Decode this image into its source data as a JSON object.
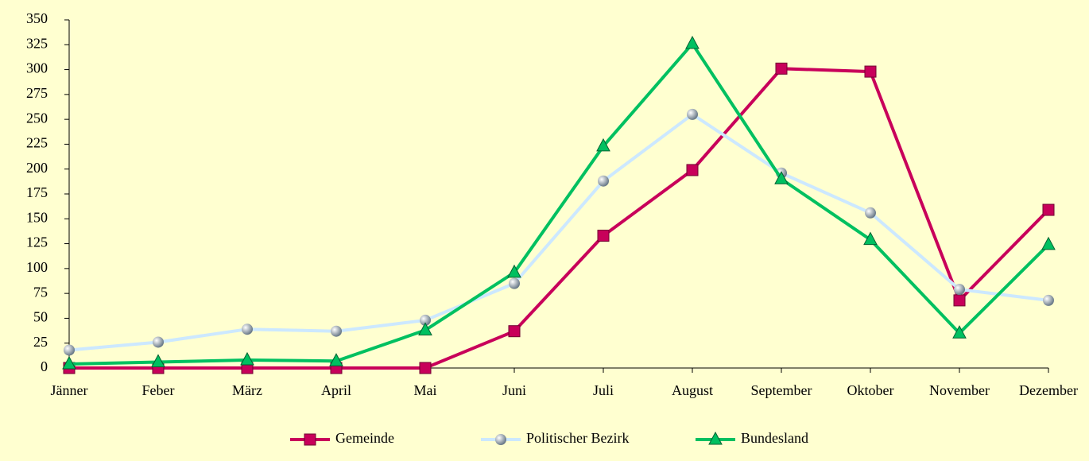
{
  "chart_data": {
    "type": "line",
    "categories": [
      "Jänner",
      "Feber",
      "März",
      "April",
      "Mai",
      "Juni",
      "Juli",
      "August",
      "September",
      "Oktober",
      "November",
      "Dezember"
    ],
    "series": [
      {
        "name": "Gemeinde",
        "color": "#c8005a",
        "marker": "square",
        "values": [
          0,
          0,
          0,
          0,
          0,
          37,
          133,
          199,
          301,
          298,
          68,
          159
        ]
      },
      {
        "name": "Politischer Bezirk",
        "color": "#cce8ff",
        "marker": "circle",
        "values": [
          18,
          26,
          39,
          37,
          48,
          85,
          188,
          255,
          196,
          156,
          79,
          68
        ]
      },
      {
        "name": "Bundesland",
        "color": "#00c060",
        "marker": "triangle",
        "values": [
          4,
          6,
          8,
          7,
          38,
          96,
          223,
          326,
          190,
          129,
          35,
          124
        ]
      }
    ],
    "ylim": [
      0,
      350
    ],
    "yticks": [
      0,
      25,
      50,
      75,
      100,
      125,
      150,
      175,
      200,
      225,
      250,
      275,
      300,
      325,
      350
    ],
    "legend": "bottom"
  }
}
